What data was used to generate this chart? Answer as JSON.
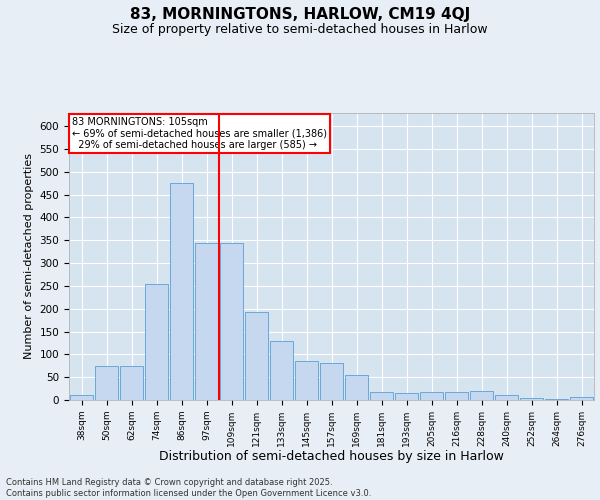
{
  "title1": "83, MORNINGTONS, HARLOW, CM19 4QJ",
  "title2": "Size of property relative to semi-detached houses in Harlow",
  "xlabel": "Distribution of semi-detached houses by size in Harlow",
  "ylabel": "Number of semi-detached properties",
  "footer": "Contains HM Land Registry data © Crown copyright and database right 2025.\nContains public sector information licensed under the Open Government Licence v3.0.",
  "bins": [
    "38sqm",
    "50sqm",
    "62sqm",
    "74sqm",
    "86sqm",
    "97sqm",
    "109sqm",
    "121sqm",
    "133sqm",
    "145sqm",
    "157sqm",
    "169sqm",
    "181sqm",
    "193sqm",
    "205sqm",
    "216sqm",
    "228sqm",
    "240sqm",
    "252sqm",
    "264sqm",
    "276sqm"
  ],
  "values": [
    10,
    75,
    75,
    255,
    475,
    345,
    345,
    193,
    130,
    85,
    80,
    55,
    18,
    15,
    18,
    18,
    20,
    10,
    5,
    3,
    6
  ],
  "bar_color": "#c5d8f0",
  "bar_edge_color": "#5a9fd4",
  "vline_x_index": 6,
  "vline_color": "red",
  "annotation_text": "83 MORNINGTONS: 105sqm\n← 69% of semi-detached houses are smaller (1,386)\n  29% of semi-detached houses are larger (585) →",
  "annotation_box_color": "red",
  "ylim": [
    0,
    630
  ],
  "yticks": [
    0,
    50,
    100,
    150,
    200,
    250,
    300,
    350,
    400,
    450,
    500,
    550,
    600
  ],
  "background_color": "#e8eef5",
  "plot_background": "#d6e4f0",
  "grid_color": "#ffffff",
  "title1_fontsize": 11,
  "title2_fontsize": 9,
  "xlabel_fontsize": 9,
  "ylabel_fontsize": 8,
  "footer_fontsize": 6
}
